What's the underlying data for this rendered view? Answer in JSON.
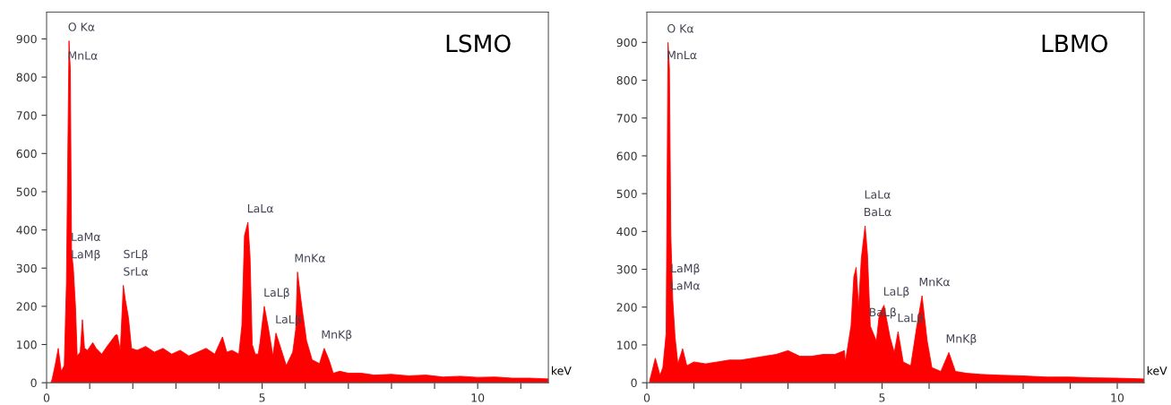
{
  "chart_data": [
    {
      "type": "area",
      "title": "LSMO",
      "xlabel": "keV",
      "xlim": [
        0,
        11.64
      ],
      "ylim": [
        0,
        970
      ],
      "xticks": [
        0,
        {
          "value": 1,
          "label": null
        },
        {
          "value": 2,
          "label": null
        },
        {
          "value": 3,
          "label": null
        },
        {
          "value": 4,
          "label": null
        },
        5,
        {
          "value": 6,
          "label": null
        },
        {
          "value": 7,
          "label": null
        },
        {
          "value": 8,
          "label": null
        },
        {
          "value": 9,
          "label": null
        },
        10,
        {
          "value": 11,
          "label": null
        }
      ],
      "yticks": [
        0,
        100,
        200,
        300,
        400,
        500,
        600,
        700,
        800,
        900
      ],
      "x": [
        0.1,
        0.13,
        0.2,
        0.27,
        0.34,
        0.41,
        0.46,
        0.52,
        0.55,
        0.58,
        0.62,
        0.67,
        0.71,
        0.78,
        0.83,
        0.88,
        0.95,
        1.07,
        1.15,
        1.28,
        1.4,
        1.5,
        1.6,
        1.64,
        1.71,
        1.78,
        1.83,
        1.9,
        1.97,
        2.1,
        2.3,
        2.5,
        2.7,
        2.9,
        3.1,
        3.3,
        3.5,
        3.7,
        3.9,
        4.08,
        4.18,
        4.3,
        4.46,
        4.53,
        4.59,
        4.67,
        4.72,
        4.77,
        4.84,
        4.91,
        4.95,
        5.05,
        5.15,
        5.25,
        5.32,
        5.42,
        5.56,
        5.71,
        5.78,
        5.82,
        5.92,
        6.03,
        6.16,
        6.33,
        6.44,
        6.55,
        6.65,
        6.8,
        7.0,
        7.3,
        7.6,
        8.0,
        8.4,
        8.8,
        9.2,
        9.6,
        10.0,
        10.4,
        10.8,
        11.2,
        11.64
      ],
      "series": [
        {
          "color": "#ff0000",
          "values": [
            0,
            10,
            47,
            90,
            30,
            45,
            260,
            895,
            820,
            340,
            300,
            200,
            70,
            80,
            165,
            90,
            85,
            105,
            90,
            75,
            95,
            110,
            125,
            125,
            85,
            255,
            215,
            170,
            90,
            85,
            95,
            80,
            90,
            75,
            85,
            70,
            80,
            90,
            75,
            120,
            80,
            85,
            75,
            150,
            385,
            420,
            330,
            100,
            75,
            75,
            105,
            200,
            140,
            70,
            130,
            95,
            45,
            80,
            140,
            290,
            200,
            110,
            60,
            50,
            90,
            60,
            25,
            30,
            25,
            25,
            20,
            22,
            18,
            20,
            15,
            17,
            14,
            15,
            12,
            12,
            10
          ]
        }
      ],
      "annotations": [
        {
          "text": "O Kα",
          "x": 0.52,
          "y": 895
        },
        {
          "text": "MnLα",
          "x": 0.55,
          "y": 820
        },
        {
          "text": "LaMα",
          "x": 0.62,
          "y": 300
        },
        {
          "text": "LaMβ",
          "x": 0.62,
          "y": 300
        },
        {
          "text": "SrLβ",
          "x": 1.78,
          "y": 255
        },
        {
          "text": "SrLα",
          "x": 1.78,
          "y": 255
        },
        {
          "text": "LaLα",
          "x": 4.67,
          "y": 420
        },
        {
          "text": "LaLβ",
          "x": 5.05,
          "y": 200
        },
        {
          "text": "LaLβ",
          "x": 5.32,
          "y": 130
        },
        {
          "text": "MnKα",
          "x": 5.82,
          "y": 290
        },
        {
          "text": "MnKβ",
          "x": 6.44,
          "y": 90
        }
      ]
    },
    {
      "type": "area",
      "title": "LBMO",
      "xlabel": "keV",
      "xlim": [
        0,
        10.57
      ],
      "ylim": [
        0,
        980
      ],
      "xticks": [
        0,
        {
          "value": 1,
          "label": null
        },
        {
          "value": 2,
          "label": null
        },
        {
          "value": 3,
          "label": null
        },
        {
          "value": 4,
          "label": null
        },
        5,
        {
          "value": 6,
          "label": null
        },
        {
          "value": 7,
          "label": null
        },
        {
          "value": 8,
          "label": null
        },
        {
          "value": 9,
          "label": null
        },
        10
      ],
      "yticks": [
        0,
        100,
        200,
        300,
        400,
        500,
        600,
        700,
        800,
        900
      ],
      "x": [
        0.06,
        0.18,
        0.28,
        0.34,
        0.41,
        0.45,
        0.48,
        0.51,
        0.55,
        0.6,
        0.66,
        0.76,
        0.85,
        1.0,
        1.25,
        1.5,
        1.75,
        2.0,
        2.25,
        2.5,
        2.75,
        3.0,
        3.25,
        3.5,
        3.75,
        4.0,
        4.2,
        4.22,
        4.34,
        4.4,
        4.45,
        4.5,
        4.56,
        4.64,
        4.69,
        4.75,
        4.88,
        4.94,
        5.04,
        5.17,
        5.26,
        5.34,
        5.45,
        5.61,
        5.74,
        5.85,
        5.96,
        6.06,
        6.25,
        6.42,
        6.56,
        6.8,
        7.1,
        7.5,
        8.0,
        8.5,
        9.0,
        9.5,
        10.0,
        10.57
      ],
      "series": [
        {
          "color": "#ff0000",
          "values": [
            5,
            65,
            20,
            40,
            130,
            900,
            830,
            390,
            220,
            120,
            50,
            90,
            45,
            55,
            50,
            55,
            60,
            60,
            65,
            70,
            75,
            85,
            70,
            70,
            75,
            75,
            85,
            55,
            150,
            280,
            305,
            200,
            330,
            415,
            340,
            150,
            110,
            180,
            205,
            120,
            80,
            135,
            55,
            45,
            150,
            230,
            110,
            40,
            30,
            80,
            30,
            25,
            22,
            20,
            18,
            15,
            15,
            13,
            12,
            10
          ]
        }
      ],
      "annotations": [
        {
          "text": "O Kα",
          "x": 0.45,
          "y": 900
        },
        {
          "text": "MnLα",
          "x": 0.48,
          "y": 830
        },
        {
          "text": "LaMβ",
          "x": 0.55,
          "y": 220
        },
        {
          "text": "LaMα",
          "x": 0.55,
          "y": 220
        },
        {
          "text": "LaLα",
          "x": 4.64,
          "y": 415
        },
        {
          "text": "BaLα",
          "x": 4.64,
          "y": 415
        },
        {
          "text": "BaLβ",
          "x": 4.75,
          "y": 150
        },
        {
          "text": "LaLβ",
          "x": 5.04,
          "y": 205
        },
        {
          "text": "LaLβ",
          "x": 5.34,
          "y": 135
        },
        {
          "text": "MnKα",
          "x": 5.85,
          "y": 230
        },
        {
          "text": "MnKβ",
          "x": 6.42,
          "y": 80
        }
      ]
    }
  ]
}
